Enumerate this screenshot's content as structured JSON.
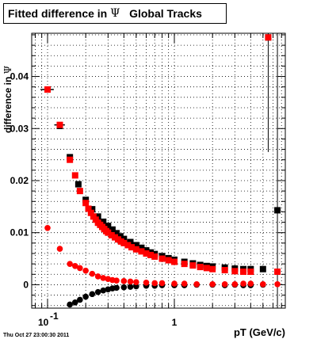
{
  "title": {
    "prefix": "Fitted difference in ",
    "symbol": "Ψ",
    "suffix": "   Global Tracks"
  },
  "footer_text": "Thu Oct 27 23:00:30 2011",
  "chart_data": {
    "type": "scatter",
    "xlabel": "pT (GeV/c)",
    "ylabel_prefix": "difference in ",
    "ylabel_symbol": "Ψ",
    "xscale": "log",
    "xlim": [
      0.075,
      7.5
    ],
    "ylim": [
      -0.0045,
      0.0483
    ],
    "x_ticks": [
      {
        "value": 0.1,
        "base": "10",
        "exp": "-1"
      },
      {
        "value": 1,
        "label": "1"
      }
    ],
    "y_ticks": [
      {
        "value": 0,
        "label": "0"
      },
      {
        "value": 0.01,
        "label": "0.01"
      },
      {
        "value": 0.02,
        "label": "0.02"
      },
      {
        "value": 0.03,
        "label": "0.03"
      },
      {
        "value": 0.04,
        "label": "0.04"
      }
    ],
    "grid": true,
    "series": [
      {
        "marker": "square",
        "color": "#000000",
        "points": [
          [
            0.1,
            0.0375
          ],
          [
            0.125,
            0.0305
          ],
          [
            0.15,
            0.0245
          ],
          [
            0.175,
            0.0193
          ],
          [
            0.2,
            0.0163
          ],
          [
            0.225,
            0.0145
          ],
          [
            0.25,
            0.0131
          ],
          [
            0.275,
            0.0121
          ],
          [
            0.3,
            0.0113
          ],
          [
            0.325,
            0.0106
          ],
          [
            0.35,
            0.0099
          ],
          [
            0.375,
            0.0093
          ],
          [
            0.4,
            0.0088
          ],
          [
            0.45,
            0.0082
          ],
          [
            0.5,
            0.0076
          ],
          [
            0.55,
            0.0071
          ],
          [
            0.6,
            0.0066
          ],
          [
            0.65,
            0.0062
          ],
          [
            0.7,
            0.0059
          ],
          [
            0.8,
            0.0055
          ],
          [
            0.9,
            0.0051
          ],
          [
            1.0,
            0.0048
          ],
          [
            1.2,
            0.0044
          ],
          [
            1.4,
            0.0041
          ],
          [
            1.6,
            0.0038
          ],
          [
            1.8,
            0.0036
          ],
          [
            2.0,
            0.0035
          ],
          [
            2.5,
            0.0033
          ],
          [
            3.0,
            0.0031
          ],
          [
            3.5,
            0.003
          ],
          [
            4.0,
            0.003
          ],
          [
            5.0,
            0.003
          ],
          [
            5.5,
            0.0475
          ],
          [
            6.5,
            0.0143
          ]
        ]
      },
      {
        "marker": "circle",
        "color": "#000000",
        "points": [
          [
            0.15,
            -0.0038
          ],
          [
            0.165,
            -0.0034
          ],
          [
            0.18,
            -0.0029
          ],
          [
            0.2,
            -0.0023
          ],
          [
            0.225,
            -0.0018
          ],
          [
            0.25,
            -0.0014
          ],
          [
            0.275,
            -0.0011
          ],
          [
            0.3,
            -0.0009
          ],
          [
            0.325,
            -0.0007
          ],
          [
            0.35,
            -0.0006
          ],
          [
            0.4,
            -0.0005
          ],
          [
            0.45,
            -0.0004
          ],
          [
            0.5,
            -0.0003
          ],
          [
            0.6,
            -0.0002
          ],
          [
            0.7,
            -0.0002
          ],
          [
            0.8,
            -0.0001
          ],
          [
            1.0,
            -0.0001
          ],
          [
            1.2,
            -0.0001
          ],
          [
            1.5,
            0.0
          ],
          [
            2.0,
            0.0
          ],
          [
            2.5,
            -0.0001
          ],
          [
            3.0,
            0.0
          ],
          [
            3.5,
            -0.0001
          ],
          [
            4.0,
            -0.0001
          ],
          [
            5.0,
            0.0
          ]
        ]
      },
      {
        "marker": "square",
        "color": "#ff0000",
        "points": [
          [
            0.1,
            0.0375
          ],
          [
            0.125,
            0.0307
          ],
          [
            0.15,
            0.024
          ],
          [
            0.165,
            0.021
          ],
          [
            0.18,
            0.018
          ],
          [
            0.2,
            0.0157
          ],
          [
            0.21,
            0.0146
          ],
          [
            0.22,
            0.0138
          ],
          [
            0.23,
            0.0131
          ],
          [
            0.24,
            0.0125
          ],
          [
            0.25,
            0.0119
          ],
          [
            0.26,
            0.0115
          ],
          [
            0.27,
            0.0111
          ],
          [
            0.28,
            0.0107
          ],
          [
            0.29,
            0.0103
          ],
          [
            0.3,
            0.01
          ],
          [
            0.32,
            0.0095
          ],
          [
            0.34,
            0.0091
          ],
          [
            0.36,
            0.0087
          ],
          [
            0.38,
            0.0083
          ],
          [
            0.4,
            0.008
          ],
          [
            0.43,
            0.0076
          ],
          [
            0.46,
            0.0072
          ],
          [
            0.5,
            0.0068
          ],
          [
            0.55,
            0.0064
          ],
          [
            0.6,
            0.006
          ],
          [
            0.65,
            0.0057
          ],
          [
            0.7,
            0.0054
          ],
          [
            0.8,
            0.005
          ],
          [
            0.9,
            0.0047
          ],
          [
            1.0,
            0.0044
          ],
          [
            1.2,
            0.004
          ],
          [
            1.4,
            0.0037
          ],
          [
            1.6,
            0.0034
          ],
          [
            1.8,
            0.0032
          ],
          [
            2.0,
            0.003
          ],
          [
            2.5,
            0.0028
          ],
          [
            3.0,
            0.0026
          ],
          [
            3.5,
            0.0025
          ],
          [
            4.0,
            0.0025
          ],
          [
            5.5,
            0.0475
          ],
          [
            6.5,
            0.0025
          ]
        ]
      },
      {
        "marker": "circle",
        "color": "#ff0000",
        "points": [
          [
            0.1,
            0.0109
          ],
          [
            0.125,
            0.0069
          ],
          [
            0.15,
            0.004
          ],
          [
            0.165,
            0.0036
          ],
          [
            0.18,
            0.0032
          ],
          [
            0.2,
            0.0027
          ],
          [
            0.225,
            0.0021
          ],
          [
            0.25,
            0.0016
          ],
          [
            0.275,
            0.0013
          ],
          [
            0.3,
            0.0011
          ],
          [
            0.325,
            0.0009
          ],
          [
            0.35,
            0.0008
          ],
          [
            0.4,
            0.0007
          ],
          [
            0.45,
            0.0006
          ],
          [
            0.5,
            0.0005
          ],
          [
            0.6,
            0.0004
          ],
          [
            0.7,
            0.0003
          ],
          [
            0.8,
            0.0003
          ],
          [
            1.0,
            0.0002
          ],
          [
            1.2,
            0.0002
          ],
          [
            1.5,
            0.0001
          ],
          [
            2.0,
            0.0001
          ],
          [
            2.5,
            0.0001
          ],
          [
            3.0,
            0.0001
          ],
          [
            3.5,
            0.0002
          ],
          [
            4.0,
            0.0002
          ],
          [
            5.0,
            0.0001
          ],
          [
            6.5,
            0.0001
          ]
        ]
      }
    ],
    "error_bars": [
      {
        "x": 5.5,
        "y_low": 0.0255,
        "y_high": 0.0483
      },
      {
        "x": 6.5,
        "y_low": -0.0045,
        "y_high": 0.0483
      },
      {
        "x": 0.1,
        "y_low": 0.0375,
        "y_high": 0.0375,
        "x_low": 0.088,
        "x_high": 0.112
      },
      {
        "x": 0.125,
        "y_low": 0.0307,
        "y_high": 0.0307,
        "x_low": 0.113,
        "x_high": 0.137
      }
    ]
  }
}
